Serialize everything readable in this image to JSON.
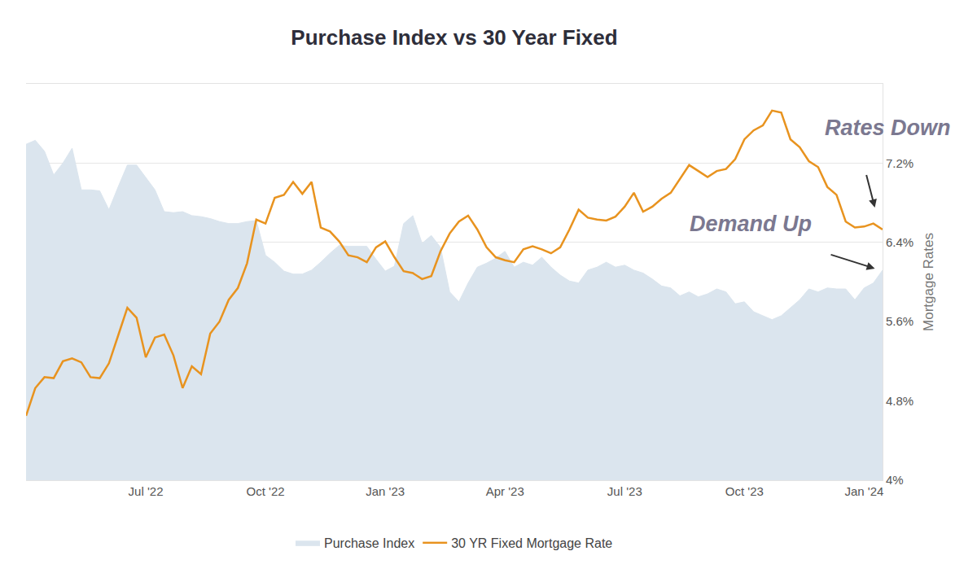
{
  "chart_data": {
    "type": "line",
    "title": "Purchase Index vs 30 Year Fixed",
    "ylabel": "Mortgage Rates",
    "categories": [
      null,
      null,
      null,
      null,
      null,
      null,
      null,
      null,
      null,
      null,
      null,
      null,
      null,
      "Jul '22",
      null,
      null,
      null,
      null,
      null,
      null,
      null,
      null,
      null,
      null,
      null,
      null,
      "Oct '22",
      null,
      null,
      null,
      null,
      null,
      null,
      null,
      null,
      null,
      null,
      null,
      null,
      "Jan '23",
      null,
      null,
      null,
      null,
      null,
      null,
      null,
      null,
      null,
      null,
      null,
      null,
      "Apr '23",
      null,
      null,
      null,
      null,
      null,
      null,
      null,
      null,
      null,
      null,
      null,
      null,
      "Jul '23",
      null,
      null,
      null,
      null,
      null,
      null,
      null,
      null,
      null,
      null,
      null,
      null,
      "Oct '23",
      null,
      null,
      null,
      null,
      null,
      null,
      null,
      null,
      null,
      null,
      null,
      null,
      "Jan '24",
      null,
      null
    ],
    "series": [
      {
        "name": "Purchase Index",
        "type": "area",
        "color": "#dbe5ee",
        "values": [
          7.39,
          7.43,
          7.32,
          7.08,
          7.2,
          7.35,
          6.93,
          6.93,
          6.92,
          6.73,
          6.96,
          7.18,
          7.18,
          7.06,
          6.93,
          6.71,
          6.7,
          6.71,
          6.67,
          6.66,
          6.64,
          6.61,
          6.59,
          6.59,
          6.61,
          6.62,
          6.27,
          6.2,
          6.11,
          6.08,
          6.08,
          6.12,
          6.2,
          6.29,
          6.37,
          6.36,
          6.36,
          6.36,
          6.23,
          6.11,
          6.16,
          6.59,
          6.67,
          6.39,
          6.47,
          6.35,
          5.9,
          5.8,
          5.99,
          6.15,
          6.19,
          6.24,
          6.31,
          6.15,
          6.2,
          6.17,
          6.25,
          6.15,
          6.07,
          6.01,
          5.99,
          6.12,
          6.15,
          6.2,
          6.15,
          6.17,
          6.12,
          6.09,
          6.03,
          5.96,
          5.94,
          5.86,
          5.9,
          5.85,
          5.88,
          5.93,
          5.9,
          5.78,
          5.8,
          5.7,
          5.66,
          5.62,
          5.66,
          5.74,
          5.82,
          5.93,
          5.9,
          5.94,
          5.93,
          5.93,
          5.82,
          5.94,
          5.99,
          6.12
        ]
      },
      {
        "name": "30 YR Fixed Mortgage Rate",
        "type": "line",
        "color": "#e8931f",
        "values": [
          4.65,
          4.93,
          5.04,
          5.03,
          5.2,
          5.23,
          5.19,
          5.04,
          5.03,
          5.18,
          5.46,
          5.74,
          5.64,
          5.24,
          5.44,
          5.47,
          5.26,
          4.93,
          5.15,
          5.07,
          5.48,
          5.6,
          5.82,
          5.94,
          6.19,
          6.63,
          6.59,
          6.85,
          6.88,
          7.01,
          6.89,
          7.01,
          6.55,
          6.51,
          6.41,
          6.27,
          6.25,
          6.2,
          6.35,
          6.41,
          6.25,
          6.11,
          6.09,
          6.03,
          6.06,
          6.31,
          6.49,
          6.61,
          6.67,
          6.53,
          6.35,
          6.25,
          6.22,
          6.2,
          6.33,
          6.36,
          6.33,
          6.29,
          6.35,
          6.53,
          6.73,
          6.65,
          6.63,
          6.62,
          6.66,
          6.76,
          6.9,
          6.71,
          6.76,
          6.84,
          6.9,
          7.04,
          7.18,
          7.12,
          7.06,
          7.12,
          7.14,
          7.24,
          7.44,
          7.53,
          7.58,
          7.73,
          7.71,
          7.44,
          7.36,
          7.22,
          7.16,
          6.96,
          6.88,
          6.61,
          6.55,
          6.56,
          6.59,
          6.53
        ]
      }
    ],
    "ylim": [
      4,
      8
    ],
    "yticks": [
      {
        "value": 4,
        "label": "4%"
      },
      {
        "value": 4.8,
        "label": "4.8%"
      },
      {
        "value": 5.6,
        "label": "5.6%"
      },
      {
        "value": 6.4,
        "label": "6.4%"
      },
      {
        "value": 7.2,
        "label": "7.2%"
      }
    ],
    "grid": true,
    "legend": "bottom",
    "annotations": [
      {
        "text": "Rates Down"
      },
      {
        "text": "Demand Up"
      }
    ]
  }
}
